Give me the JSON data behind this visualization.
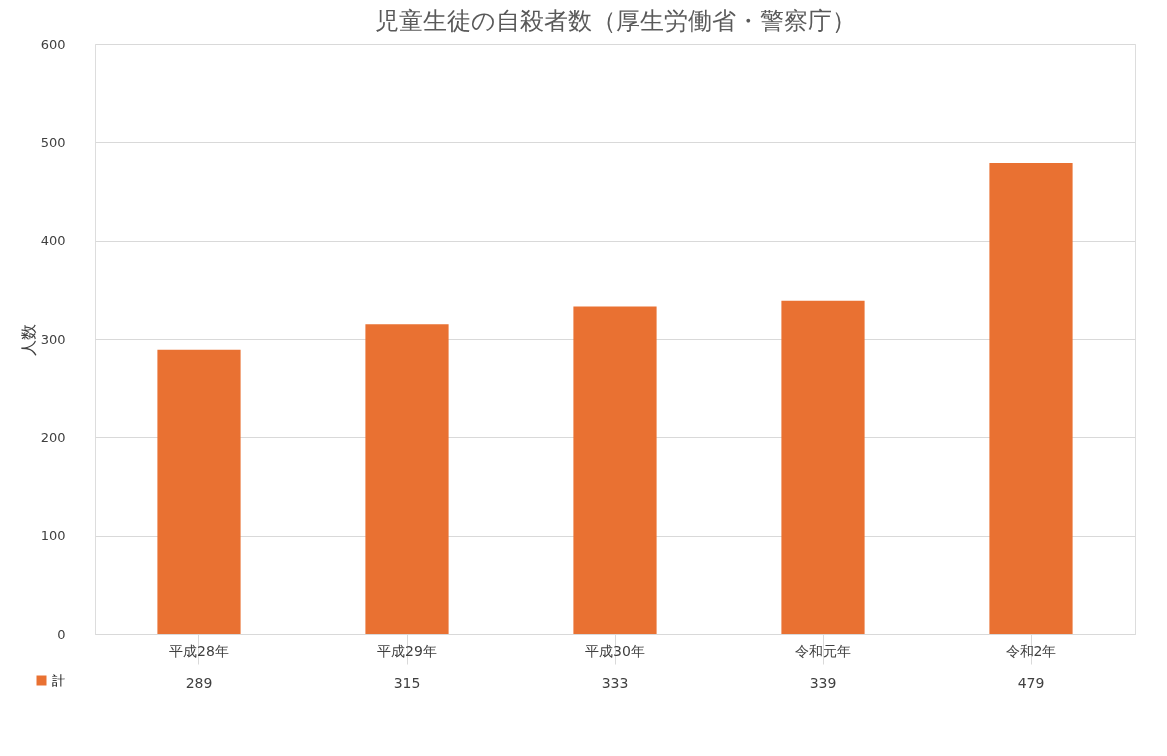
{
  "chart_data": {
    "type": "bar",
    "title": "児童生徒の自殺者数（厚生労働省・警察庁）",
    "ylabel": "人数",
    "categories": [
      "平成28年",
      "平成29年",
      "平成30年",
      "令和元年",
      "令和2年"
    ],
    "series": [
      {
        "name": "計",
        "color": "#e97132",
        "values": [
          289,
          315,
          333,
          339,
          479
        ]
      }
    ],
    "ylim": [
      0,
      600
    ],
    "yticks": [
      0,
      100,
      200,
      300,
      400,
      500,
      600
    ],
    "grid": "y",
    "legend": "bottom left",
    "data_labels": true
  }
}
